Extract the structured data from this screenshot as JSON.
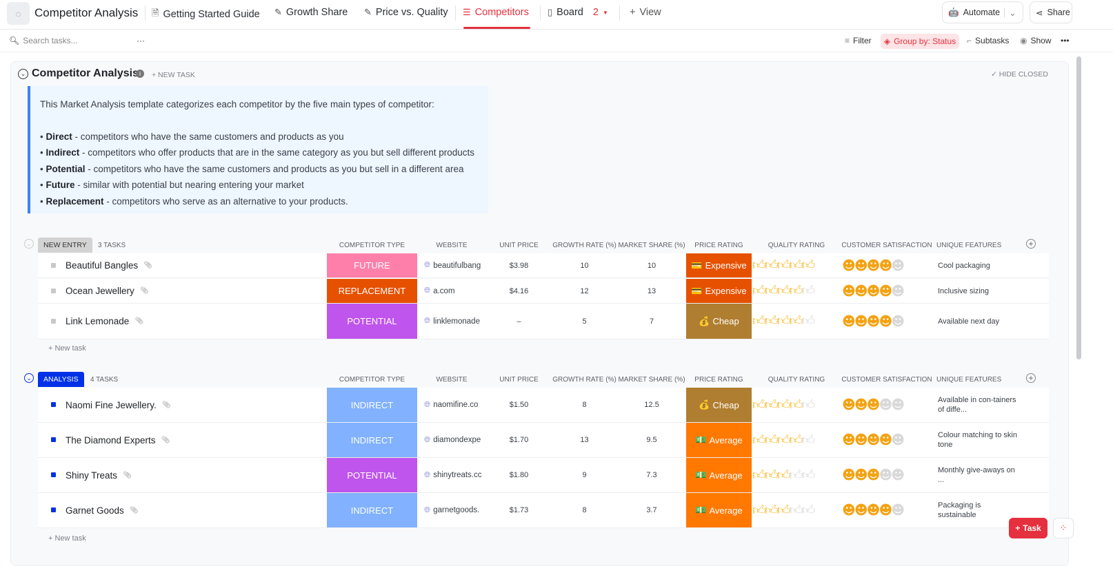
{
  "app": {
    "title": "Competitor Analysis"
  },
  "tabs": [
    {
      "label": "Getting Started Guide",
      "icon": "doc-icon"
    },
    {
      "label": "Growth Share",
      "icon": "whiteboard-icon"
    },
    {
      "label": "Price vs. Quality",
      "icon": "whiteboard-icon"
    },
    {
      "label": "Competitors",
      "icon": "list-icon",
      "active": true
    },
    {
      "label": "Board",
      "icon": "board-icon",
      "badge": "2"
    },
    {
      "label": "View",
      "icon": "plus-icon"
    }
  ],
  "header_actions": {
    "automate": "Automate",
    "share": "Share"
  },
  "toolbar": {
    "search_placeholder": "Search tasks...",
    "filter": "Filter",
    "group_by": "Group by: Status",
    "subtasks": "Subtasks",
    "show": "Show"
  },
  "list": {
    "title": "Competitor Analysis",
    "new_task": "+ NEW TASK",
    "hide_closed": "HIDE CLOSED"
  },
  "description": {
    "intro": "This Market Analysis template categorizes each competitor by the five main types of competitor:",
    "items": [
      {
        "term": "Direct",
        "text": " - competitors who have the same customers and products as you"
      },
      {
        "term": "Indirect",
        "text": " - competitors who offer products that are in the same category as you but sell different products"
      },
      {
        "term": "Potential",
        "text": " - competitors who have the same customers and products as you but sell in a different area"
      },
      {
        "term": "Future",
        "text": " - similar with potential but nearing entering your market"
      },
      {
        "term": "Replacement",
        "text": " - competitors who serve as an alternative to your products."
      }
    ]
  },
  "columns": [
    "COMPETITOR TYPE",
    "WEBSITE",
    "UNIT PRICE",
    "GROWTH RATE (%)",
    "MARKET SHARE (%)",
    "PRICE RATING",
    "QUALITY RATING",
    "CUSTOMER SATISFACTION",
    "UNIQUE FEATURES"
  ],
  "colors": {
    "accent": "#e5303d",
    "future": "#ff7fab",
    "replacement": "#e65100",
    "potential": "#bf55ec",
    "indirect": "#81b1ff",
    "expensive": "#e65100",
    "cheap": "#b07e30",
    "average": "#ff7800",
    "new_entry": "#d3d3d3",
    "analysis": "#0231e8"
  },
  "groups": [
    {
      "status": "NEW ENTRY",
      "count": "3 TASKS",
      "new_task": "+ New task",
      "tasks": [
        {
          "name": "Beautiful Bangles",
          "type": "FUTURE",
          "website": "beautifulbang",
          "unit_price": "$3.98",
          "growth": "10",
          "share": "10",
          "price_rating": "Expensive",
          "price_icon": "credit-card-icon",
          "quality": 5,
          "satisfaction": 4,
          "features": "Cool packaging"
        },
        {
          "name": "Ocean Jewellery",
          "type": "REPLACEMENT",
          "website": "a.com",
          "unit_price": "$4.16",
          "growth": "12",
          "share": "13",
          "price_rating": "Expensive",
          "price_icon": "credit-card-icon",
          "quality": 4,
          "satisfaction": 4,
          "features": "Inclusive sizing"
        },
        {
          "name": "Link Lemonade",
          "type": "POTENTIAL",
          "website": "linklemonade",
          "unit_price": "–",
          "growth": "5",
          "share": "7",
          "price_rating": "Cheap",
          "price_icon": "money-bag-icon",
          "quality": 4,
          "satisfaction": 4,
          "features": "Available next day"
        }
      ]
    },
    {
      "status": "ANALYSIS",
      "count": "4 TASKS",
      "new_task": "+ New task",
      "tasks": [
        {
          "name": "Naomi Fine Jewellery.",
          "type": "INDIRECT",
          "website": "naomifine.co",
          "unit_price": "$1.50",
          "growth": "8",
          "share": "12.5",
          "price_rating": "Cheap",
          "price_icon": "money-bag-icon",
          "quality": 4,
          "satisfaction": 3,
          "features": "Available in con-tainers of diffe..."
        },
        {
          "name": "The Diamond Experts",
          "type": "INDIRECT",
          "website": "diamondexpe",
          "unit_price": "$1.70",
          "growth": "13",
          "share": "9.5",
          "price_rating": "Average",
          "price_icon": "banknote-icon",
          "quality": 4,
          "satisfaction": 4,
          "features": "Colour matching to skin tone"
        },
        {
          "name": "Shiny Treats",
          "type": "POTENTIAL",
          "website": "shinytreats.cc",
          "unit_price": "$1.80",
          "growth": "9",
          "share": "7.3",
          "price_rating": "Average",
          "price_icon": "banknote-icon",
          "quality": 3,
          "satisfaction": 3,
          "features": "Monthly give-aways on ..."
        },
        {
          "name": "Garnet Goods",
          "type": "INDIRECT",
          "website": "garnetgoods.",
          "unit_price": "$1.73",
          "growth": "8",
          "share": "3.7",
          "price_rating": "Average",
          "price_icon": "banknote-icon",
          "quality": 3,
          "satisfaction": 4,
          "features": "Packaging is sustainable"
        }
      ]
    }
  ],
  "fab": {
    "label": "Task"
  }
}
